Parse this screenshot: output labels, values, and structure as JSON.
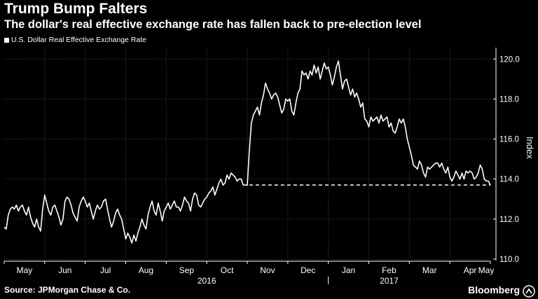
{
  "header": {
    "title": "Trump Bump Falters",
    "subtitle": "The dollar's real effective exchange rate has fallen back to pre-election level"
  },
  "legend": {
    "label": "U.S. Dollar Real Effective Exchange Rate"
  },
  "footer": {
    "source": "Source: JPMorgan Chase & Co.",
    "brand": "Bloomberg"
  },
  "colors": {
    "background": "#000000",
    "line": "#ffffff",
    "grid": "#5a5a5a",
    "text": "#ffffff"
  },
  "chart_data": {
    "type": "line",
    "title": "Trump Bump Falters",
    "subtitle": "The dollar's real effective exchange rate has fallen back to pre-election level",
    "ylabel": "Index",
    "xlabel": "",
    "ylim": [
      110,
      120.5
    ],
    "yticks": [
      110.0,
      112.0,
      114.0,
      116.0,
      118.0,
      120.0
    ],
    "ytick_labels": [
      "110.0",
      "112.0",
      "114.0",
      "116.0",
      "118.0",
      "120.0"
    ],
    "grid": true,
    "x_month_labels": [
      "May",
      "Jun",
      "Jul",
      "Aug",
      "Sep",
      "Oct",
      "Nov",
      "Dec",
      "Jan",
      "Feb",
      "Mar",
      "Apr",
      "May"
    ],
    "x_year_labels": [
      {
        "label": "2016",
        "month_index": 5
      },
      {
        "label": "2017",
        "month_index": 9.5
      }
    ],
    "x_unit": "months since May 1, 2016",
    "series": [
      {
        "name": "U.S. Dollar Real Effective Exchange Rate",
        "x": [
          0.0,
          0.05,
          0.1,
          0.15,
          0.2,
          0.25,
          0.3,
          0.35,
          0.4,
          0.45,
          0.5,
          0.55,
          0.6,
          0.65,
          0.7,
          0.75,
          0.8,
          0.85,
          0.9,
          0.95,
          1.0,
          1.05,
          1.1,
          1.15,
          1.2,
          1.25,
          1.3,
          1.35,
          1.4,
          1.45,
          1.5,
          1.55,
          1.6,
          1.65,
          1.7,
          1.75,
          1.8,
          1.85,
          1.9,
          1.95,
          2.0,
          2.05,
          2.1,
          2.15,
          2.2,
          2.25,
          2.3,
          2.35,
          2.4,
          2.45,
          2.5,
          2.55,
          2.6,
          2.65,
          2.7,
          2.75,
          2.8,
          2.85,
          2.9,
          2.95,
          3.0,
          3.05,
          3.1,
          3.15,
          3.2,
          3.25,
          3.3,
          3.35,
          3.4,
          3.45,
          3.5,
          3.55,
          3.6,
          3.65,
          3.7,
          3.75,
          3.8,
          3.85,
          3.9,
          3.95,
          4.0,
          4.05,
          4.1,
          4.15,
          4.2,
          4.25,
          4.3,
          4.35,
          4.4,
          4.45,
          4.5,
          4.55,
          4.6,
          4.65,
          4.7,
          4.75,
          4.8,
          4.85,
          4.9,
          4.95,
          5.0,
          5.05,
          5.1,
          5.15,
          5.2,
          5.25,
          5.3,
          5.35,
          5.4,
          5.45,
          5.5,
          5.55,
          5.6,
          5.65,
          5.7,
          5.75,
          5.8,
          5.85,
          5.9,
          5.95,
          6.0,
          6.05,
          6.1,
          6.15,
          6.2,
          6.25,
          6.3,
          6.35,
          6.4,
          6.45,
          6.5,
          6.55,
          6.6,
          6.65,
          6.7,
          6.75,
          6.8,
          6.85,
          6.9,
          6.95,
          7.0,
          7.05,
          7.1,
          7.15,
          7.2,
          7.25,
          7.3,
          7.35,
          7.4,
          7.45,
          7.5,
          7.55,
          7.6,
          7.65,
          7.7,
          7.75,
          7.8,
          7.85,
          7.9,
          7.95,
          8.0,
          8.05,
          8.1,
          8.15,
          8.2,
          8.25,
          8.3,
          8.35,
          8.4,
          8.45,
          8.5,
          8.55,
          8.6,
          8.65,
          8.7,
          8.75,
          8.8,
          8.85,
          8.9,
          8.95,
          9.0,
          9.05,
          9.1,
          9.15,
          9.2,
          9.25,
          9.3,
          9.35,
          9.4,
          9.45,
          9.5,
          9.55,
          9.6,
          9.65,
          9.7,
          9.75,
          9.8,
          9.85,
          9.9,
          9.95,
          10.0,
          10.05,
          10.1,
          10.15,
          10.2,
          10.25,
          10.3,
          10.35,
          10.4,
          10.45,
          10.5,
          10.55,
          10.6,
          10.65,
          10.7,
          10.75,
          10.8,
          10.85,
          10.9,
          10.95,
          11.0,
          11.05,
          11.1,
          11.15,
          11.2,
          11.25,
          11.3,
          11.35,
          11.4,
          11.45,
          11.5,
          11.55,
          11.6,
          11.65,
          11.7,
          11.75,
          11.8,
          11.85,
          11.9,
          11.95,
          12.0
        ],
        "values": [
          111.6,
          111.5,
          112.2,
          112.5,
          112.6,
          112.5,
          112.7,
          112.4,
          112.6,
          112.7,
          112.4,
          112.2,
          112.6,
          112.1,
          111.8,
          111.6,
          112.0,
          111.6,
          111.4,
          112.5,
          113.2,
          112.8,
          112.4,
          112.2,
          112.6,
          112.7,
          112.4,
          112.1,
          111.7,
          112.0,
          112.9,
          113.1,
          113.0,
          112.7,
          112.3,
          112.1,
          111.9,
          112.6,
          112.9,
          113.1,
          112.9,
          112.6,
          112.8,
          112.4,
          112.0,
          112.4,
          112.7,
          112.5,
          112.6,
          112.9,
          113.0,
          112.5,
          112.0,
          111.6,
          111.9,
          112.3,
          112.5,
          112.2,
          112.0,
          111.5,
          111.0,
          111.3,
          111.1,
          110.8,
          111.2,
          110.9,
          111.3,
          111.6,
          112.0,
          111.7,
          111.5,
          112.2,
          112.6,
          112.9,
          112.4,
          112.2,
          112.8,
          112.4,
          111.9,
          112.4,
          112.6,
          112.8,
          112.5,
          112.7,
          112.9,
          112.6,
          112.6,
          112.4,
          112.7,
          113.1,
          112.9,
          112.8,
          112.4,
          113.0,
          113.3,
          113.2,
          112.7,
          112.6,
          112.8,
          113.0,
          113.1,
          113.3,
          113.4,
          113.6,
          113.2,
          113.5,
          113.8,
          114.0,
          113.7,
          113.8,
          114.2,
          114.0,
          114.3,
          114.2,
          114.1,
          113.9,
          114.0,
          114.0,
          113.7,
          113.7,
          113.7,
          115.4,
          116.8,
          117.2,
          117.4,
          117.6,
          117.2,
          117.8,
          118.2,
          118.8,
          118.5,
          118.3,
          118.0,
          118.2,
          118.3,
          118.1,
          117.7,
          117.3,
          117.5,
          118.0,
          117.9,
          118.0,
          117.4,
          117.2,
          117.8,
          118.3,
          118.5,
          119.4,
          119.2,
          119.3,
          119.0,
          119.4,
          119.2,
          119.7,
          119.3,
          119.6,
          119.0,
          119.4,
          119.8,
          119.5,
          119.6,
          119.2,
          118.7,
          119.1,
          119.6,
          119.9,
          119.2,
          118.5,
          118.9,
          119.0,
          118.6,
          118.2,
          118.5,
          118.1,
          118.3,
          118.0,
          117.6,
          117.8,
          117.0,
          116.9,
          116.6,
          117.1,
          116.9,
          117.0,
          117.1,
          116.8,
          117.2,
          116.9,
          117.0,
          117.1,
          116.6,
          116.8,
          116.4,
          116.3,
          116.6,
          117.0,
          116.8,
          117.0,
          116.6,
          116.0,
          115.6,
          115.2,
          114.7,
          114.6,
          114.5,
          114.9,
          114.7,
          114.3,
          114.1,
          114.6,
          114.5,
          114.6,
          114.7,
          114.8,
          114.8,
          114.6,
          114.8,
          114.5,
          114.3,
          114.6,
          114.1,
          113.9,
          114.1,
          114.4,
          114.2,
          114.0,
          114.3,
          114.0,
          114.4,
          114.3,
          114.4,
          114.3,
          114.0,
          114.1,
          114.3,
          114.7,
          114.5,
          114.0,
          113.9,
          113.9,
          113.7
        ]
      }
    ],
    "annotations": [
      {
        "type": "horizontal-dashed-line",
        "value": 113.7,
        "x_start": 6.05,
        "x_end": 12.0,
        "description": "pre-election level"
      }
    ]
  }
}
